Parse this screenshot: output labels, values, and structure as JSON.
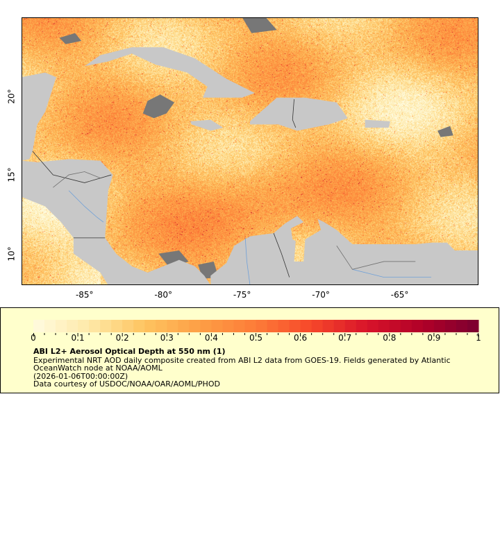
{
  "map": {
    "lon_range": [
      -89,
      -60
    ],
    "lat_range": [
      8,
      25
    ],
    "x_ticks": [
      "-85°",
      "-80°",
      "-75°",
      "-70°",
      "-65°"
    ],
    "x_tick_values": [
      -85,
      -80,
      -75,
      -70,
      -65
    ],
    "y_ticks": [
      "10°",
      "15°",
      "20°"
    ],
    "y_tick_values": [
      10,
      15,
      20
    ],
    "land_color": "#c8c8c8",
    "nodata_color": "#777777",
    "river_color": "#6fa0d8",
    "border_color": "#707070"
  },
  "legend": {
    "colorbar_range": [
      0,
      1
    ],
    "colorbar_ticks": [
      "0",
      "0.1",
      "0.2",
      "0.3",
      "0.4",
      "0.5",
      "0.6",
      "0.7",
      "0.8",
      "0.9",
      "1"
    ],
    "colormap_stops": [
      "#fffbe0",
      "#fee9a8",
      "#fec460",
      "#fd9e45",
      "#fd7c38",
      "#f6472a",
      "#d8142a",
      "#b00028",
      "#7a0030"
    ],
    "title": "ABI L2+ Aerosol Optical Depth at 550 nm (1)",
    "description_line1": "Experimental NRT AOD daily composite created from ABI L2 data from GOES-19. Fields generated by Atlantic",
    "description_line2": "OceanWatch node at NOAA/AOML",
    "time": "(2026-01-06T00:00:00Z)",
    "credit": "Data courtesy of USDOC/NOAA/OAR/AOML/PHOD"
  }
}
